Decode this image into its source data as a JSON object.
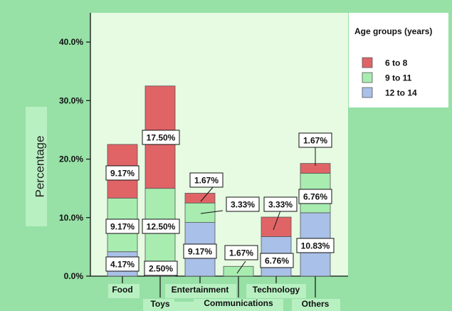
{
  "colors": {
    "background": "#97e0a6",
    "plot_background": "#e6fbe2",
    "legend_background": "#ffffff",
    "series_6_8": "#e06466",
    "series_9_11": "#a8ecb0",
    "series_12_14": "#a9c0e8"
  },
  "chart_data": {
    "type": "bar",
    "stacked": true,
    "title": "",
    "xlabel": "",
    "ylabel": "Percentage",
    "ylim": [
      0,
      45
    ],
    "yticks": [
      "0.0%",
      "10.0%",
      "20.0%",
      "30.0%",
      "40.0%"
    ],
    "grid": false,
    "legend": {
      "title": "Age groups (years)",
      "position": "top-right"
    },
    "categories": [
      "Food",
      "Toys",
      "Entertainment",
      "Communications",
      "Technology",
      "Others"
    ],
    "series": [
      {
        "name": "12 to 14",
        "values": [
          4.17,
          2.5,
          9.17,
          0,
          6.76,
          10.83
        ]
      },
      {
        "name": "9 to 11",
        "values": [
          9.17,
          12.5,
          3.33,
          1.67,
          0,
          6.76
        ]
      },
      {
        "name": "6 to 8",
        "values": [
          9.17,
          17.5,
          1.67,
          0,
          3.33,
          1.67
        ]
      }
    ],
    "data_labels": [
      {
        "category": "Food",
        "series": "12 to 14",
        "text": "4.17%"
      },
      {
        "category": "Food",
        "series": "9 to 11",
        "text": "9.17%"
      },
      {
        "category": "Food",
        "series": "6 to 8",
        "text": "9.17%"
      },
      {
        "category": "Toys",
        "series": "12 to 14",
        "text": "2.50%"
      },
      {
        "category": "Toys",
        "series": "9 to 11",
        "text": "12.50%"
      },
      {
        "category": "Toys",
        "series": "6 to 8",
        "text": "17.50%"
      },
      {
        "category": "Entertainment",
        "series": "12 to 14",
        "text": "9.17%"
      },
      {
        "category": "Entertainment",
        "series": "9 to 11",
        "text": "3.33%"
      },
      {
        "category": "Entertainment",
        "series": "6 to 8",
        "text": "1.67%"
      },
      {
        "category": "Communications",
        "series": "9 to 11",
        "text": "1.67%"
      },
      {
        "category": "Technology",
        "series": "12 to 14",
        "text": "6.76%"
      },
      {
        "category": "Technology",
        "series": "6 to 8",
        "text": "3.33%"
      },
      {
        "category": "Others",
        "series": "12 to 14",
        "text": "10.83%"
      },
      {
        "category": "Others",
        "series": "9 to 11",
        "text": "6.76%"
      },
      {
        "category": "Others",
        "series": "6 to 8",
        "text": "1.67%"
      }
    ]
  }
}
